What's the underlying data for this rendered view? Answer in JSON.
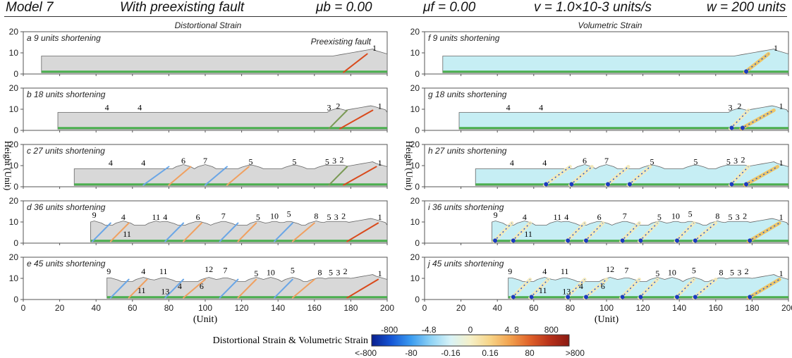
{
  "header": {
    "model": "Model  7",
    "scenario": "With preexisting fault",
    "mu_b": "μb = 0.00",
    "mu_f": "μf = 0.00",
    "velocity": "v = 1.0×10-3 units/s",
    "width": "w = 200 units"
  },
  "column_titles": [
    "Distortional Strain",
    "Volumetric Strain"
  ],
  "y_axis_label": "Height (Unit)",
  "x_axis_label": "(Unit)",
  "x_ticks": [
    "0",
    "20",
    "40",
    "60",
    "80",
    "100",
    "120",
    "140",
    "160",
    "180",
    "200"
  ],
  "y_ticks": [
    "0",
    "10",
    "20"
  ],
  "preexisting_label": "Preexisting fault",
  "panels": [
    {
      "letter": "a",
      "text": "9 units shortening",
      "start": 10,
      "labels": [
        {
          "t": "1",
          "x": 193,
          "y": 11
        }
      ],
      "faults": [
        {
          "x1": 176,
          "x2": 189,
          "c": "#d94a1c"
        }
      ]
    },
    {
      "letter": "b",
      "text": "18 units shortening",
      "start": 19,
      "labels": [
        {
          "t": "4",
          "x": 46,
          "y": 9.5
        },
        {
          "t": "4",
          "x": 64,
          "y": 9.5
        },
        {
          "t": "3",
          "x": 168,
          "y": 9.5
        },
        {
          "t": "2",
          "x": 173,
          "y": 10.2
        },
        {
          "t": "1",
          "x": 196,
          "y": 10.2
        }
      ],
      "faults": [
        {
          "x1": 174,
          "x2": 192,
          "c": "#d94a1c"
        },
        {
          "x1": 168,
          "x2": 178,
          "c": "#7a9a55"
        }
      ]
    },
    {
      "letter": "c",
      "text": "27 units shortening",
      "start": 28,
      "labels": [
        {
          "t": "4",
          "x": 48,
          "y": 10
        },
        {
          "t": "4",
          "x": 66,
          "y": 10
        },
        {
          "t": "6",
          "x": 88,
          "y": 11
        },
        {
          "t": "7",
          "x": 100,
          "y": 11
        },
        {
          "t": "5",
          "x": 125,
          "y": 10.5
        },
        {
          "t": "5",
          "x": 149,
          "y": 10.5
        },
        {
          "t": "5",
          "x": 167,
          "y": 10.5
        },
        {
          "t": "3",
          "x": 171,
          "y": 11
        },
        {
          "t": "2",
          "x": 175,
          "y": 11.5
        },
        {
          "t": "1",
          "x": 196,
          "y": 10
        }
      ],
      "faults": [
        {
          "x1": 66,
          "x2": 80,
          "c": "#6aa6e6"
        },
        {
          "x1": 80,
          "x2": 92,
          "c": "#f0a060"
        },
        {
          "x1": 100,
          "x2": 112,
          "c": "#6aa6e6"
        },
        {
          "x1": 112,
          "x2": 124,
          "c": "#f0a060"
        },
        {
          "x1": 176,
          "x2": 194,
          "c": "#d94a1c"
        },
        {
          "x1": 168,
          "x2": 178,
          "c": "#7a9a55"
        }
      ]
    },
    {
      "letter": "d",
      "text": "36 units shortening",
      "start": 37,
      "labels": [
        {
          "t": "9",
          "x": 39,
          "y": 12
        },
        {
          "t": "4",
          "x": 55,
          "y": 11
        },
        {
          "t": "11",
          "x": 57,
          "y": 3
        },
        {
          "t": "11",
          "x": 73,
          "y": 11
        },
        {
          "t": "4",
          "x": 78,
          "y": 11
        },
        {
          "t": "6",
          "x": 96,
          "y": 11
        },
        {
          "t": "7",
          "x": 110,
          "y": 11.5
        },
        {
          "t": "5",
          "x": 129,
          "y": 11
        },
        {
          "t": "10",
          "x": 138,
          "y": 11.5
        },
        {
          "t": "5",
          "x": 146,
          "y": 12.5
        },
        {
          "t": "8",
          "x": 161,
          "y": 11.5
        },
        {
          "t": "5",
          "x": 168,
          "y": 11
        },
        {
          "t": "3",
          "x": 172,
          "y": 11
        },
        {
          "t": "2",
          "x": 176,
          "y": 11.5
        },
        {
          "t": "1",
          "x": 196,
          "y": 11
        }
      ],
      "faults": [
        {
          "x1": 38,
          "x2": 48,
          "c": "#6aa6e6"
        },
        {
          "x1": 48,
          "x2": 58,
          "c": "#f0a060"
        },
        {
          "x1": 78,
          "x2": 88,
          "c": "#6aa6e6"
        },
        {
          "x1": 88,
          "x2": 98,
          "c": "#f0a060"
        },
        {
          "x1": 108,
          "x2": 118,
          "c": "#6aa6e6"
        },
        {
          "x1": 118,
          "x2": 128,
          "c": "#f0a060"
        },
        {
          "x1": 138,
          "x2": 148,
          "c": "#6aa6e6"
        },
        {
          "x1": 148,
          "x2": 160,
          "c": "#f0a060"
        },
        {
          "x1": 178,
          "x2": 195,
          "c": "#d94a1c"
        }
      ]
    },
    {
      "letter": "e",
      "text": "45 units shortening",
      "start": 46,
      "labels": [
        {
          "t": "9",
          "x": 47,
          "y": 12
        },
        {
          "t": "4",
          "x": 66,
          "y": 12
        },
        {
          "t": "11",
          "x": 65,
          "y": 3
        },
        {
          "t": "11",
          "x": 77,
          "y": 12
        },
        {
          "t": "13",
          "x": 78,
          "y": 2.5
        },
        {
          "t": "4",
          "x": 86,
          "y": 5
        },
        {
          "t": "12",
          "x": 102,
          "y": 13
        },
        {
          "t": "6",
          "x": 98,
          "y": 5
        },
        {
          "t": "7",
          "x": 111,
          "y": 12.5
        },
        {
          "t": "5",
          "x": 128,
          "y": 11
        },
        {
          "t": "10",
          "x": 136,
          "y": 11.5
        },
        {
          "t": "5",
          "x": 148,
          "y": 12.5
        },
        {
          "t": "8",
          "x": 163,
          "y": 11.5
        },
        {
          "t": "5",
          "x": 169,
          "y": 11.5
        },
        {
          "t": "3",
          "x": 173,
          "y": 11.5
        },
        {
          "t": "2",
          "x": 177,
          "y": 12
        },
        {
          "t": "1",
          "x": 196,
          "y": 11
        }
      ],
      "faults": [
        {
          "x1": 48,
          "x2": 58,
          "c": "#6aa6e6"
        },
        {
          "x1": 58,
          "x2": 68,
          "c": "#f0a060"
        },
        {
          "x1": 78,
          "x2": 88,
          "c": "#6aa6e6"
        },
        {
          "x1": 88,
          "x2": 100,
          "c": "#f0a060"
        },
        {
          "x1": 108,
          "x2": 118,
          "c": "#6aa6e6"
        },
        {
          "x1": 118,
          "x2": 128,
          "c": "#f0a060"
        },
        {
          "x1": 138,
          "x2": 148,
          "c": "#6aa6e6"
        },
        {
          "x1": 148,
          "x2": 160,
          "c": "#f0a060"
        },
        {
          "x1": 178,
          "x2": 195,
          "c": "#d94a1c"
        }
      ]
    }
  ],
  "vol_letters": [
    "f",
    "g",
    "h",
    "i",
    "j"
  ],
  "colorbar": {
    "title": "Distortional Strain & Volumetric Strain",
    "top_labels": [
      "-800",
      "-4.8",
      "0",
      "4. 8",
      "800"
    ],
    "bottom_labels": [
      "<-800",
      "-80",
      "-0.16",
      "0.16",
      "80",
      ">800"
    ],
    "colors": [
      "#0a1f8f",
      "#1556d6",
      "#3b9cf0",
      "#8fd3f5",
      "#d8f3f7",
      "#f5f0c8",
      "#f7d487",
      "#f2a24e",
      "#e0622a",
      "#b8321a",
      "#8b1a12"
    ]
  },
  "palette": {
    "gray_fill": "#d8d8d8",
    "cyan_fill": "#c6eef4",
    "green_base": "#4caf50",
    "fault_blue": "#6aa6e6",
    "fault_orange": "#f0a060",
    "fault_red": "#d94a1c"
  }
}
